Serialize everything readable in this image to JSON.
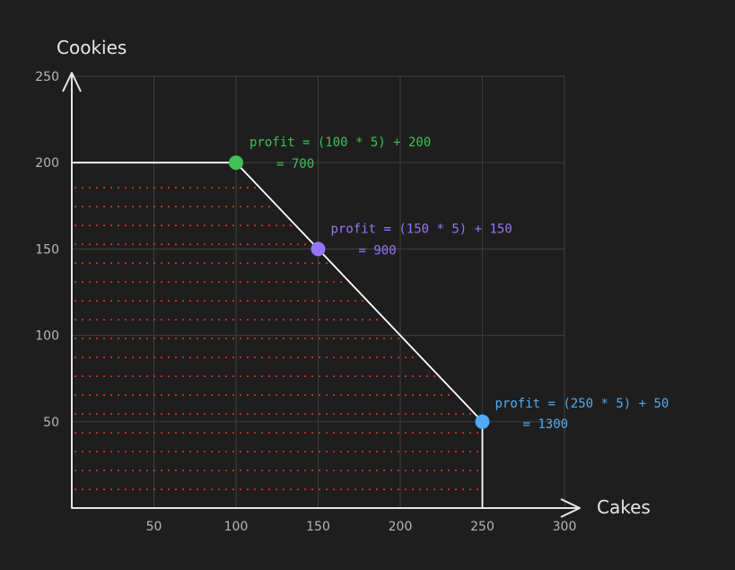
{
  "chart_data": {
    "type": "line",
    "xlabel": "Cakes",
    "ylabel": "Cookies",
    "xlim": [
      0,
      300
    ],
    "ylim": [
      0,
      250
    ],
    "xticks": [
      50,
      100,
      150,
      200,
      250,
      300
    ],
    "yticks": [
      50,
      100,
      150,
      200,
      250
    ],
    "grid": true,
    "feasible_region": {
      "vertices": [
        [
          0,
          0
        ],
        [
          0,
          200
        ],
        [
          100,
          200
        ],
        [
          150,
          150
        ],
        [
          250,
          50
        ],
        [
          250,
          0
        ]
      ],
      "hatch_color": "#e03131",
      "boundary_color": "#ffffff"
    },
    "points": [
      {
        "x": 100,
        "y": 200,
        "color": "#40c057",
        "label_line1": "profit = (100 * 5) + 200",
        "label_line2": "= 700"
      },
      {
        "x": 150,
        "y": 150,
        "color": "#9775fa",
        "label_line1": "profit = (150 * 5) + 150",
        "label_line2": "= 900"
      },
      {
        "x": 250,
        "y": 50,
        "color": "#4dabf7",
        "label_line1": "profit = (250 * 5) + 50",
        "label_line2": "= 1300"
      }
    ]
  }
}
